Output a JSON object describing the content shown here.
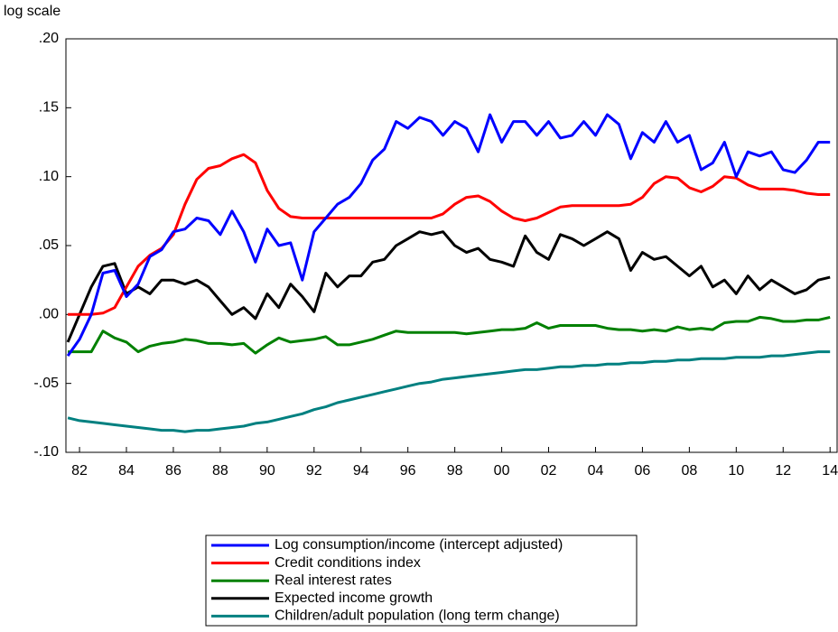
{
  "chart_data": {
    "type": "line",
    "y_label": "log scale",
    "x": [
      1981.5,
      1982,
      1982.5,
      1983,
      1983.5,
      1984,
      1984.5,
      1985,
      1985.5,
      1986,
      1986.5,
      1987,
      1987.5,
      1988,
      1988.5,
      1989,
      1989.5,
      1990,
      1990.5,
      1991,
      1991.5,
      1992,
      1992.5,
      1993,
      1993.5,
      1994,
      1994.5,
      1995,
      1995.5,
      1996,
      1996.5,
      1997,
      1997.5,
      1998,
      1998.5,
      1999,
      1999.5,
      2000,
      2000.5,
      2001,
      2001.5,
      2002,
      2002.5,
      2003,
      2003.5,
      2004,
      2004.5,
      2005,
      2005.5,
      2006,
      2006.5,
      2007,
      2007.5,
      2008,
      2008.5,
      2009,
      2009.5,
      2010,
      2010.5,
      2011,
      2011.5,
      2012,
      2012.5,
      2013,
      2013.5,
      2014
    ],
    "series": [
      {
        "name": "Log consumption/income (intercept adjusted)",
        "color": "#0000ff",
        "values": [
          -0.03,
          -0.018,
          0.0,
          0.03,
          0.032,
          0.013,
          0.022,
          0.042,
          0.047,
          0.06,
          0.062,
          0.07,
          0.068,
          0.058,
          0.075,
          0.06,
          0.038,
          0.062,
          0.05,
          0.052,
          0.025,
          0.06,
          0.07,
          0.08,
          0.085,
          0.095,
          0.112,
          0.12,
          0.14,
          0.135,
          0.143,
          0.14,
          0.13,
          0.14,
          0.135,
          0.118,
          0.145,
          0.125,
          0.14,
          0.14,
          0.13,
          0.14,
          0.128,
          0.13,
          0.14,
          0.13,
          0.145,
          0.138,
          0.113,
          0.132,
          0.125,
          0.14,
          0.125,
          0.13,
          0.105,
          0.11,
          0.125,
          0.1,
          0.118,
          0.115,
          0.118,
          0.105,
          0.103,
          0.112,
          0.125,
          0.125
        ]
      },
      {
        "name": "Credit conditions index",
        "color": "#ff0000",
        "values": [
          0,
          0,
          0,
          0.001,
          0.005,
          0.02,
          0.035,
          0.043,
          0.048,
          0.058,
          0.08,
          0.098,
          0.106,
          0.108,
          0.113,
          0.116,
          0.11,
          0.09,
          0.077,
          0.071,
          0.07,
          0.07,
          0.07,
          0.07,
          0.07,
          0.07,
          0.07,
          0.07,
          0.07,
          0.07,
          0.07,
          0.07,
          0.073,
          0.08,
          0.085,
          0.086,
          0.082,
          0.075,
          0.07,
          0.068,
          0.07,
          0.074,
          0.078,
          0.079,
          0.079,
          0.079,
          0.079,
          0.079,
          0.08,
          0.085,
          0.095,
          0.1,
          0.099,
          0.092,
          0.089,
          0.093,
          0.1,
          0.099,
          0.094,
          0.091,
          0.091,
          0.091,
          0.09,
          0.088,
          0.087,
          0.087
        ]
      },
      {
        "name": "Real interest rates",
        "color": "#008000",
        "values": [
          -0.027,
          -0.027,
          -0.027,
          -0.012,
          -0.017,
          -0.02,
          -0.027,
          -0.023,
          -0.021,
          -0.02,
          -0.018,
          -0.019,
          -0.021,
          -0.021,
          -0.022,
          -0.021,
          -0.028,
          -0.022,
          -0.017,
          -0.02,
          -0.019,
          -0.018,
          -0.016,
          -0.022,
          -0.022,
          -0.02,
          -0.018,
          -0.015,
          -0.012,
          -0.013,
          -0.013,
          -0.013,
          -0.013,
          -0.013,
          -0.014,
          -0.013,
          -0.012,
          -0.011,
          -0.011,
          -0.01,
          -0.006,
          -0.01,
          -0.008,
          -0.008,
          -0.008,
          -0.008,
          -0.01,
          -0.011,
          -0.011,
          -0.012,
          -0.011,
          -0.012,
          -0.009,
          -0.011,
          -0.01,
          -0.011,
          -0.006,
          -0.005,
          -0.005,
          -0.002,
          -0.003,
          -0.005,
          -0.005,
          -0.004,
          -0.004,
          -0.002
        ]
      },
      {
        "name": "Expected income growth",
        "color": "#000000",
        "values": [
          -0.02,
          0.0,
          0.02,
          0.035,
          0.037,
          0.015,
          0.02,
          0.015,
          0.025,
          0.025,
          0.022,
          0.025,
          0.02,
          0.01,
          0.0,
          0.005,
          -0.003,
          0.015,
          0.005,
          0.022,
          0.013,
          0.002,
          0.03,
          0.02,
          0.028,
          0.028,
          0.038,
          0.04,
          0.05,
          0.055,
          0.06,
          0.058,
          0.06,
          0.05,
          0.045,
          0.048,
          0.04,
          0.038,
          0.035,
          0.057,
          0.045,
          0.04,
          0.058,
          0.055,
          0.05,
          0.055,
          0.06,
          0.055,
          0.032,
          0.045,
          0.04,
          0.042,
          0.035,
          0.028,
          0.035,
          0.02,
          0.025,
          0.015,
          0.028,
          0.018,
          0.025,
          0.02,
          0.015,
          0.018,
          0.025,
          0.027
        ]
      },
      {
        "name": "Children/adult population (long term change)",
        "color": "#008080",
        "values": [
          -0.075,
          -0.077,
          -0.078,
          -0.079,
          -0.08,
          -0.081,
          -0.082,
          -0.083,
          -0.084,
          -0.084,
          -0.085,
          -0.084,
          -0.084,
          -0.083,
          -0.082,
          -0.081,
          -0.079,
          -0.078,
          -0.076,
          -0.074,
          -0.072,
          -0.069,
          -0.067,
          -0.064,
          -0.062,
          -0.06,
          -0.058,
          -0.056,
          -0.054,
          -0.052,
          -0.05,
          -0.049,
          -0.047,
          -0.046,
          -0.045,
          -0.044,
          -0.043,
          -0.042,
          -0.041,
          -0.04,
          -0.04,
          -0.039,
          -0.038,
          -0.038,
          -0.037,
          -0.037,
          -0.036,
          -0.036,
          -0.035,
          -0.035,
          -0.034,
          -0.034,
          -0.033,
          -0.033,
          -0.032,
          -0.032,
          -0.032,
          -0.031,
          -0.031,
          -0.031,
          -0.03,
          -0.03,
          -0.029,
          -0.028,
          -0.027,
          -0.027
        ]
      }
    ],
    "xlim": [
      1981.42,
      2014.3
    ],
    "xticks": [
      {
        "value": 1982,
        "label": "82"
      },
      {
        "value": 1984,
        "label": "84"
      },
      {
        "value": 1986,
        "label": "86"
      },
      {
        "value": 1988,
        "label": "88"
      },
      {
        "value": 1990,
        "label": "90"
      },
      {
        "value": 1992,
        "label": "92"
      },
      {
        "value": 1994,
        "label": "94"
      },
      {
        "value": 1996,
        "label": "96"
      },
      {
        "value": 1998,
        "label": "98"
      },
      {
        "value": 2000,
        "label": "00"
      },
      {
        "value": 2002,
        "label": "02"
      },
      {
        "value": 2004,
        "label": "04"
      },
      {
        "value": 2006,
        "label": "06"
      },
      {
        "value": 2008,
        "label": "08"
      },
      {
        "value": 2010,
        "label": "10"
      },
      {
        "value": 2012,
        "label": "12"
      },
      {
        "value": 2014,
        "label": "14"
      }
    ],
    "ylim": [
      -0.1,
      0.2
    ],
    "yticks": [
      {
        "value": -0.1,
        "label": "-.10"
      },
      {
        "value": -0.05,
        "label": "-.05"
      },
      {
        "value": 0,
        "label": ".00"
      },
      {
        "value": 0.05,
        "label": ".05"
      },
      {
        "value": 0.1,
        "label": ".10"
      },
      {
        "value": 0.15,
        "label": ".15"
      },
      {
        "value": 0.2,
        "label": ".20"
      }
    ],
    "legend": "bottom"
  }
}
